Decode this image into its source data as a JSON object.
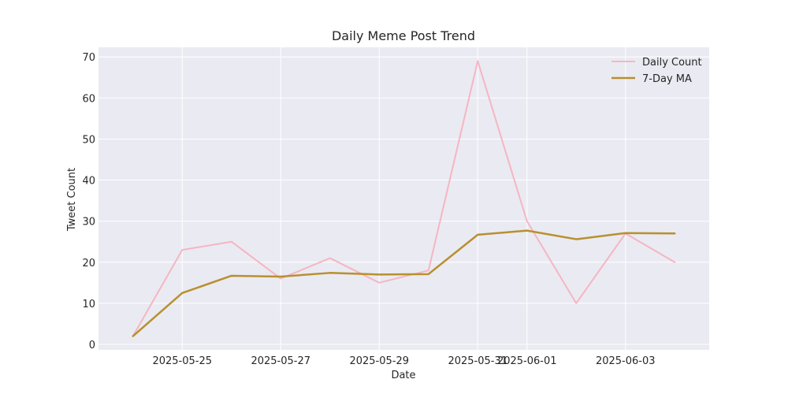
{
  "chart_data": {
    "type": "line",
    "title": "Daily Meme Post Trend",
    "xlabel": "Date",
    "ylabel": "Tweet Count",
    "x": [
      "2025-05-24",
      "2025-05-25",
      "2025-05-26",
      "2025-05-27",
      "2025-05-28",
      "2025-05-29",
      "2025-05-30",
      "2025-05-31",
      "2025-06-01",
      "2025-06-02",
      "2025-06-03",
      "2025-06-04"
    ],
    "series": [
      {
        "name": "Daily Count",
        "color": "#f4b6c2",
        "values": [
          2,
          23,
          25,
          16,
          21,
          15,
          18,
          69,
          30,
          10,
          27,
          20
        ]
      },
      {
        "name": "7-Day MA",
        "color": "#b8902f",
        "values": [
          2,
          12.5,
          16.7,
          16.5,
          17.4,
          17.0,
          17.1,
          26.7,
          27.7,
          25.6,
          27.1,
          27.0
        ]
      }
    ],
    "xticks": [
      "2025-05-25",
      "2025-05-27",
      "2025-05-29",
      "2025-05-31",
      "2025-06-01",
      "2025-06-03"
    ],
    "yticks": [
      0,
      10,
      20,
      30,
      40,
      50,
      60,
      70
    ],
    "ylim": [
      -1.35,
      72.35
    ],
    "xlim": [
      "2025-05-23T07:12",
      "2025-06-04T16:48"
    ],
    "grid": true,
    "background": "#eaeaf2",
    "legend_position": "top-right"
  }
}
